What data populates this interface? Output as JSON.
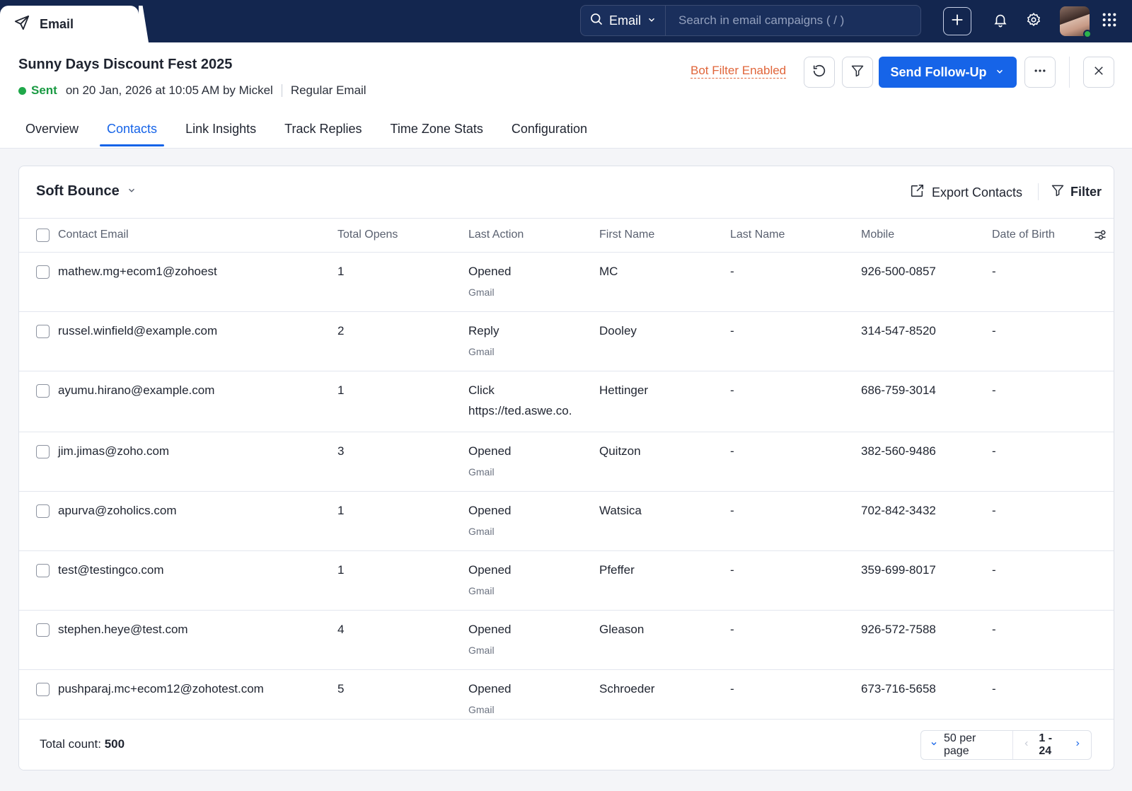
{
  "app": {
    "tab_label": "Email"
  },
  "search": {
    "scope": "Email",
    "placeholder": "Search in email campaigns ( / )"
  },
  "campaign": {
    "title": "Sunny Days Discount Fest 2025",
    "status": "Sent",
    "sent_info": "on 20 Jan, 2026 at 10:05 AM by Mickel",
    "type": "Regular Email"
  },
  "actions": {
    "bot_filter": "Bot Filter Enabled",
    "send_followup": "Send Follow-Up"
  },
  "tabs": [
    {
      "label": "Overview"
    },
    {
      "label": "Contacts",
      "active": true
    },
    {
      "label": "Link Insights"
    },
    {
      "label": "Track Replies"
    },
    {
      "label": "Time Zone Stats"
    },
    {
      "label": "Configuration"
    }
  ],
  "card": {
    "view": "Soft Bounce",
    "export_label": "Export Contacts",
    "filter_label": "Filter"
  },
  "table": {
    "columns": [
      "Contact Email",
      "Total Opens",
      "Last Action",
      "First Name",
      "Last Name",
      "Mobile",
      "Date of Birth"
    ],
    "rows": [
      {
        "email": "mathew.mg+ecom1@zohoest",
        "opens": "1",
        "action": "Opened",
        "action_sub": "Gmail",
        "first": "MC",
        "last": "-",
        "mobile": "926-500-0857",
        "dob": "-"
      },
      {
        "email": "russel.winfield@example.com",
        "opens": "2",
        "action": "Reply",
        "action_sub": "Gmail",
        "first": "Dooley",
        "last": "-",
        "mobile": "314-547-8520",
        "dob": "-"
      },
      {
        "email": "ayumu.hirano@example.com",
        "opens": "1",
        "action": "Click",
        "action_sub": "https://ted.aswe.co.",
        "first": "Hettinger",
        "last": "-",
        "mobile": "686-759-3014",
        "dob": "-"
      },
      {
        "email": "jim.jimas@zoho.com",
        "opens": "3",
        "action": "Opened",
        "action_sub": "Gmail",
        "first": "Quitzon",
        "last": "-",
        "mobile": "382-560-9486",
        "dob": "-"
      },
      {
        "email": "apurva@zoholics.com",
        "opens": "1",
        "action": "Opened",
        "action_sub": "Gmail",
        "first": "Watsica",
        "last": "-",
        "mobile": "702-842-3432",
        "dob": "-"
      },
      {
        "email": "test@testingco.com",
        "opens": "1",
        "action": "Opened",
        "action_sub": "Gmail",
        "first": "Pfeffer",
        "last": "-",
        "mobile": "359-699-8017",
        "dob": "-"
      },
      {
        "email": "stephen.heye@test.com",
        "opens": "4",
        "action": "Opened",
        "action_sub": "Gmail",
        "first": "Gleason",
        "last": "-",
        "mobile": "926-572-7588",
        "dob": "-"
      },
      {
        "email": "pushparaj.mc+ecom12@zohotest.com",
        "opens": "5",
        "action": "Opened",
        "action_sub": "Gmail",
        "first": "Schroeder",
        "last": "-",
        "mobile": "673-716-5658",
        "dob": "-"
      }
    ]
  },
  "footer": {
    "total_label": "Total count:",
    "total_value": "500",
    "per_page": "50 per page",
    "range": "1 - 24"
  },
  "colors": {
    "navbar": "#13264f",
    "accent": "#1664e8",
    "sent": "#1a9a43",
    "bot_filter": "#e0653a"
  }
}
